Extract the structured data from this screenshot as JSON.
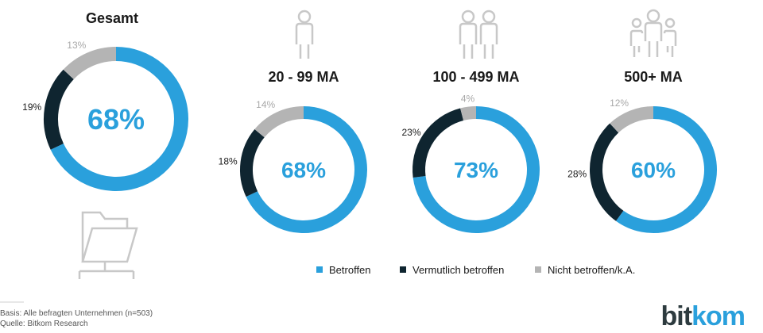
{
  "chart_data": [
    {
      "type": "pie",
      "variant": "donut",
      "title": "Gesamt",
      "center_label": "68%",
      "slices": [
        {
          "category": "Betroffen",
          "value": 68,
          "label": ""
        },
        {
          "category": "Vermutlich betroffen",
          "value": 19,
          "label": "19%"
        },
        {
          "category": "Nicht betroffen/k.A.",
          "value": 13,
          "label": "13%"
        }
      ]
    },
    {
      "type": "pie",
      "variant": "donut",
      "title": "20 - 99 MA",
      "center_label": "68%",
      "slices": [
        {
          "category": "Betroffen",
          "value": 68,
          "label": ""
        },
        {
          "category": "Vermutlich betroffen",
          "value": 18,
          "label": "18%"
        },
        {
          "category": "Nicht betroffen/k.A.",
          "value": 14,
          "label": "14%"
        }
      ]
    },
    {
      "type": "pie",
      "variant": "donut",
      "title": "100 - 499 MA",
      "center_label": "73%",
      "slices": [
        {
          "category": "Betroffen",
          "value": 73,
          "label": ""
        },
        {
          "category": "Vermutlich betroffen",
          "value": 23,
          "label": "23%"
        },
        {
          "category": "Nicht betroffen/k.A.",
          "value": 4,
          "label": "4%"
        }
      ]
    },
    {
      "type": "pie",
      "variant": "donut",
      "title": "500+ MA",
      "center_label": "60%",
      "slices": [
        {
          "category": "Betroffen",
          "value": 60,
          "label": ""
        },
        {
          "category": "Vermutlich betroffen",
          "value": 28,
          "label": "28%"
        },
        {
          "category": "Nicht betroffen/k.A.",
          "value": 12,
          "label": "12%"
        }
      ]
    }
  ],
  "legend": [
    {
      "label": "Betroffen",
      "color": "#2aa0dc"
    },
    {
      "label": "Vermutlich betroffen",
      "color": "#0f2530"
    },
    {
      "label": "Nicht betroffen/k.A.",
      "color": "#b4b4b4"
    }
  ],
  "colors": {
    "Betroffen": "#2aa0dc",
    "Vermutlich betroffen": "#0f2530",
    "Nicht betroffen/k.A.": "#b4b4b4",
    "label_dark": "#1a1a1a",
    "label_light": "#a8a8a8"
  },
  "icons": [
    "folder-network-icon",
    "person-icon",
    "two-persons-icon",
    "group-icon"
  ],
  "footer": {
    "basis": "Basis: Alle befragten Unternehmen (n=503)",
    "quelle": "Quelle: Bitkom Research"
  },
  "logo": {
    "part1": "bit",
    "part2": "kom"
  }
}
